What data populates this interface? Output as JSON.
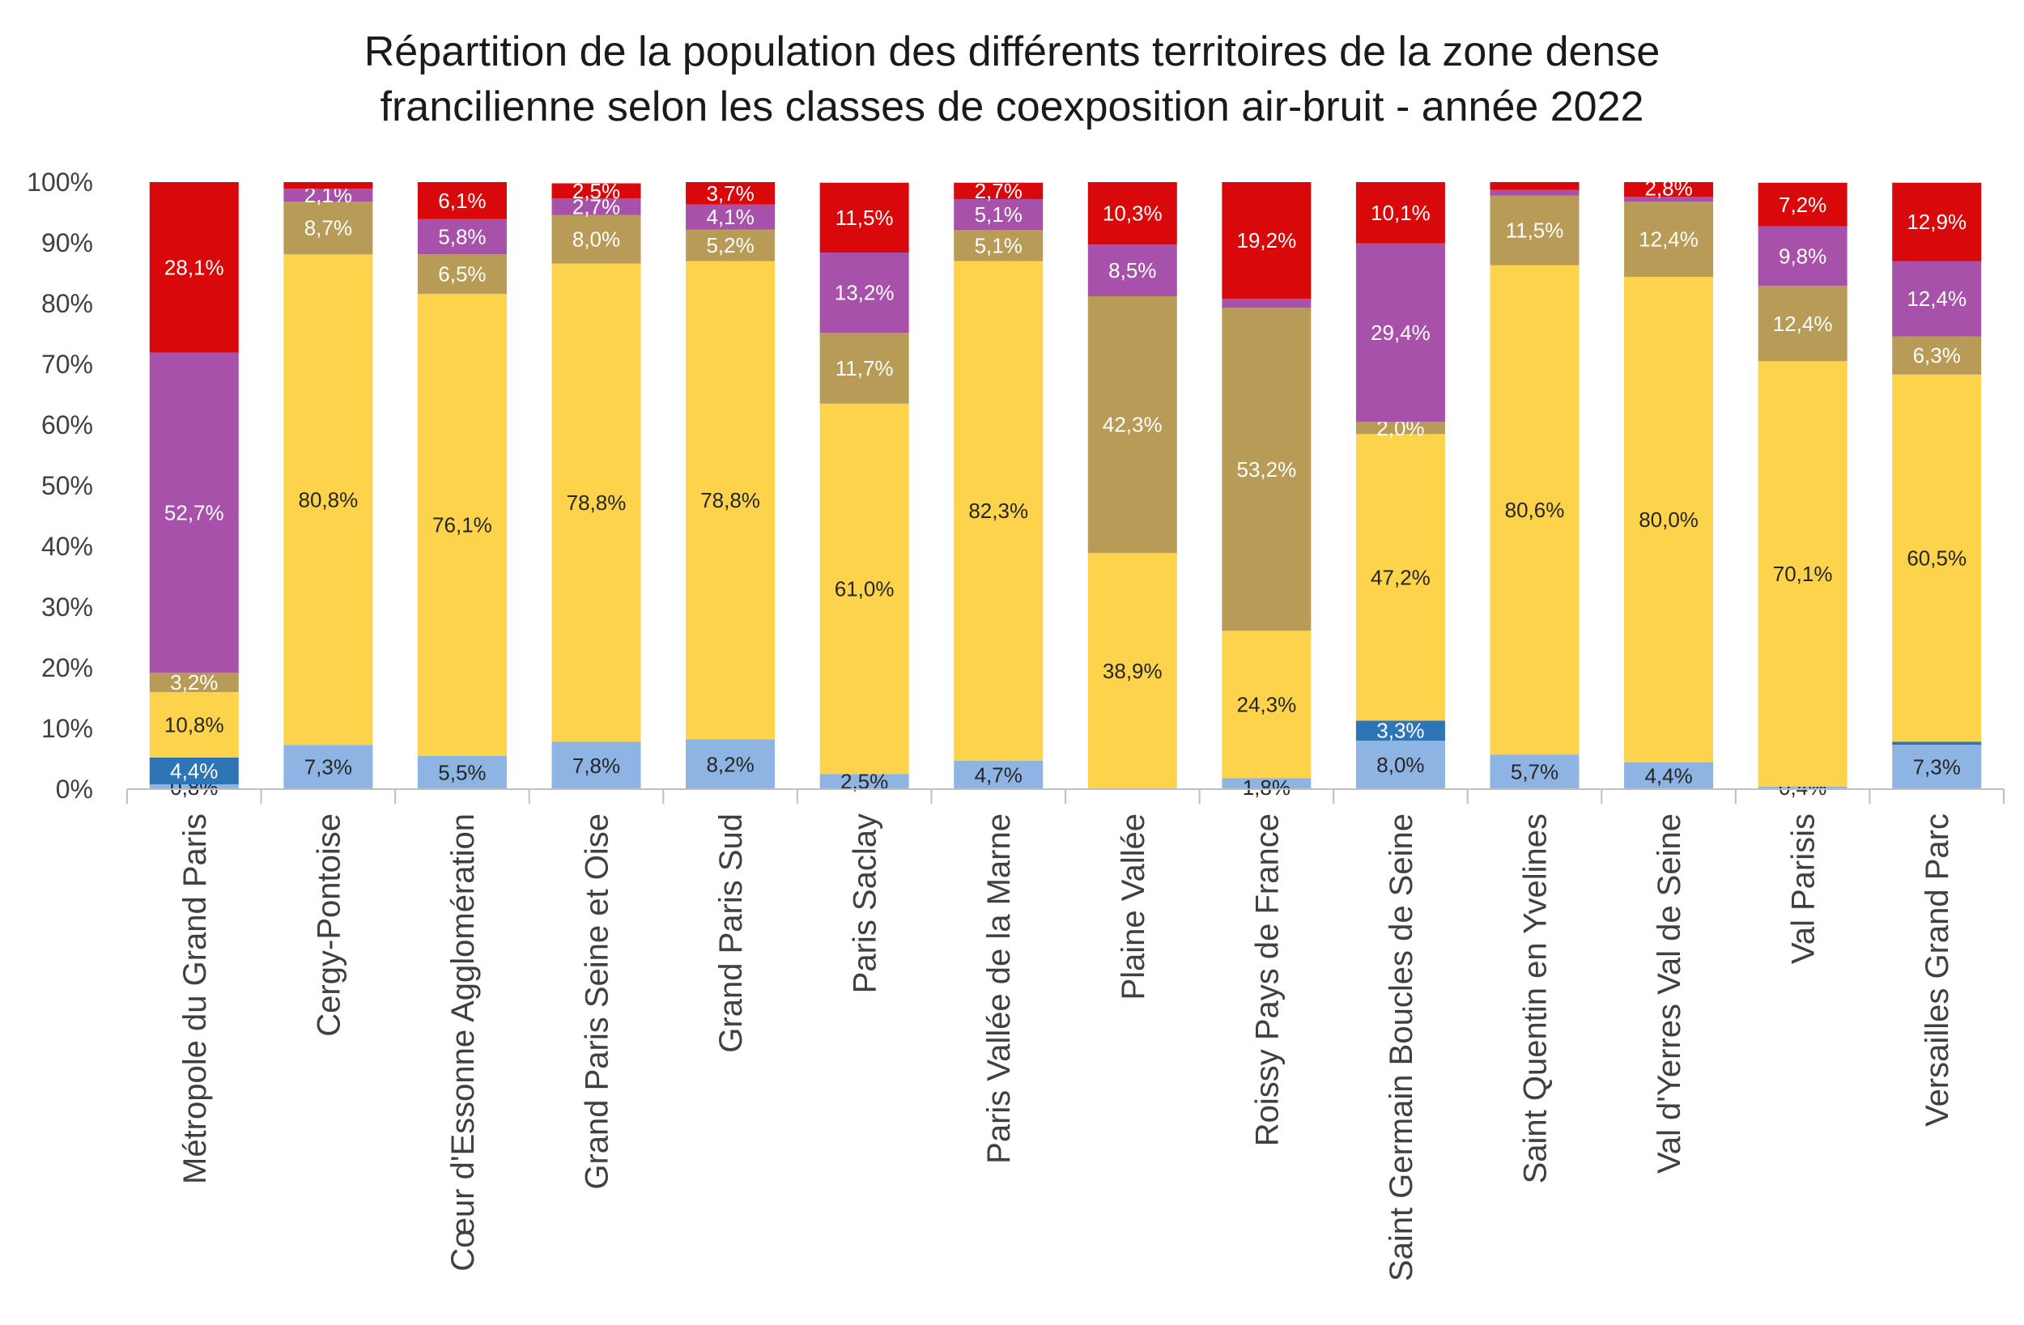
{
  "chart_data": {
    "type": "bar",
    "stacked": true,
    "title_lines": [
      "Répartition de la population des différents territoires de la zone dense",
      "francilienne selon les classes de coexposition air-bruit - année 2022"
    ],
    "ylim": [
      0,
      100
    ],
    "yticks": [
      "0%",
      "10%",
      "20%",
      "30%",
      "40%",
      "50%",
      "60%",
      "70%",
      "80%",
      "90%",
      "100%"
    ],
    "grid": false,
    "legend": "none",
    "categories": [
      "Métropole du Grand Paris",
      "Cergy-Pontoise",
      "Cœur d'Essonne Agglomération",
      "Grand Paris Seine et Oise",
      "Grand Paris Sud",
      "Paris Saclay",
      "Paris Vallée de la Marne",
      "Plaine Vallée",
      "Roissy Pays de France",
      "Saint Germain Boucles de Seine",
      "Saint Quentin en Yvelines",
      "Val d'Yerres Val de Seine",
      "Val Parisis",
      "Versailles Grand Parc"
    ],
    "series": [
      {
        "color": "#8db4e2",
        "label_color": "#262626",
        "values": [
          0.8,
          7.3,
          5.5,
          7.8,
          8.2,
          2.5,
          4.7,
          0.0,
          1.8,
          8.0,
          5.7,
          4.4,
          0.4,
          7.3
        ],
        "labels": [
          "0,8%",
          "7,3%",
          "5,5%",
          "7,8%",
          "8,2%",
          "2,5%",
          "4,7%",
          "",
          "1,8%",
          "8,0%",
          "5,7%",
          "4,4%",
          "0,4%",
          "7,3%"
        ]
      },
      {
        "color": "#2e75b6",
        "label_color": "#ffffff",
        "values": [
          4.4,
          0.0,
          0.0,
          0.0,
          0.0,
          0.0,
          0.0,
          0.0,
          0.0,
          3.3,
          0.0,
          0.0,
          0.0,
          0.5
        ],
        "labels": [
          "4,4%",
          "",
          "",
          "",
          "",
          "",
          "",
          "",
          "",
          "3,3%",
          "",
          "",
          "",
          ""
        ]
      },
      {
        "color": "#fcd34b",
        "label_color": "#262626",
        "values": [
          10.8,
          80.8,
          76.1,
          78.8,
          78.8,
          61.0,
          82.3,
          38.9,
          24.3,
          47.2,
          80.6,
          80.0,
          70.1,
          60.5
        ],
        "labels": [
          "10,8%",
          "80,8%",
          "76,1%",
          "78,8%",
          "78,8%",
          "61,0%",
          "82,3%",
          "38,9%",
          "24,3%",
          "47,2%",
          "80,6%",
          "80,0%",
          "70,1%",
          "60,5%"
        ]
      },
      {
        "color": "#b89b57",
        "label_color": "#ffffff",
        "values": [
          3.2,
          8.7,
          6.5,
          8.0,
          5.2,
          11.7,
          5.1,
          42.3,
          53.2,
          2.0,
          11.5,
          12.4,
          12.4,
          6.3
        ],
        "labels": [
          "3,2%",
          "8,7%",
          "6,5%",
          "8,0%",
          "5,2%",
          "11,7%",
          "5,1%",
          "42,3%",
          "53,2%",
          "2,0%",
          "11,5%",
          "12,4%",
          "12,4%",
          "6,3%"
        ]
      },
      {
        "color": "#a851ab",
        "label_color": "#ffffff",
        "values": [
          52.7,
          2.1,
          5.8,
          2.7,
          4.1,
          13.2,
          5.1,
          8.5,
          1.5,
          29.4,
          0.9,
          0.8,
          9.8,
          12.4
        ],
        "labels": [
          "52,7%",
          "2,1%",
          "5,8%",
          "2,7%",
          "4,1%",
          "13,2%",
          "5,1%",
          "8,5%",
          "",
          "29,4%",
          "",
          "",
          "9,8%",
          "12,4%"
        ]
      },
      {
        "color": "#d9080a",
        "label_color": "#ffffff",
        "values": [
          28.1,
          1.1,
          6.1,
          2.5,
          3.7,
          11.5,
          2.7,
          10.3,
          19.2,
          10.1,
          1.3,
          2.8,
          7.2,
          12.9
        ],
        "labels": [
          "28,1%",
          "",
          "6,1%",
          "2,5%",
          "3,7%",
          "11,5%",
          "2,7%",
          "10,3%",
          "19,2%",
          "10,1%",
          "",
          "2,8%",
          "7,2%",
          "12,9%"
        ]
      }
    ]
  }
}
